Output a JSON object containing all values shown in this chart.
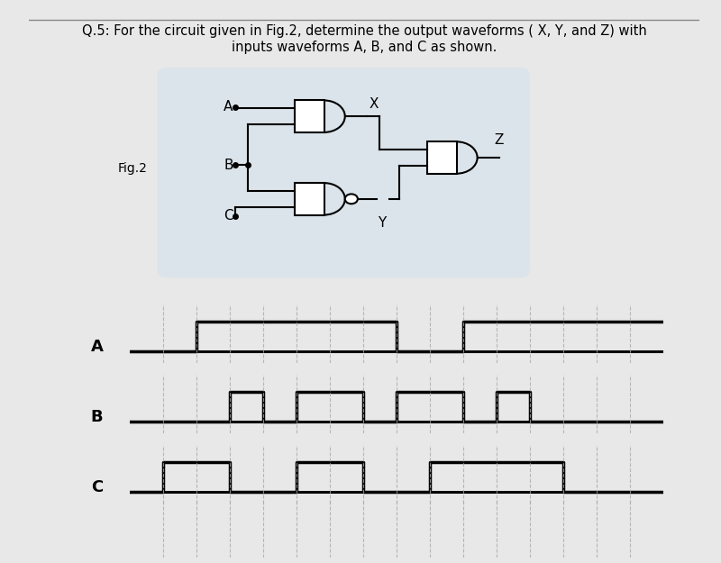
{
  "title_line1": "Q.5: For the circuit given in Fig.2, determine the output waveforms ( X, Y, and Z) with",
  "title_line2": "inputs waveforms A, B, and C as shown.",
  "fig_label": "Fig.2",
  "bg_color": "#e8e8e8",
  "content_bg": "#ffffff",
  "signal_labels": [
    "A",
    "B",
    "C"
  ],
  "time_steps": 16,
  "A_wave": [
    0,
    0,
    1,
    1,
    1,
    1,
    1,
    1,
    0,
    0,
    1,
    1,
    1,
    1,
    1,
    1
  ],
  "B_wave": [
    0,
    0,
    0,
    1,
    0,
    1,
    1,
    0,
    1,
    1,
    0,
    1,
    0,
    0,
    0,
    0
  ],
  "C_wave": [
    0,
    1,
    1,
    0,
    0,
    1,
    1,
    0,
    0,
    1,
    1,
    1,
    1,
    0,
    0,
    0
  ],
  "line_color": "#000000",
  "dashed_color": "#aaaaaa",
  "label_fontsize": 13,
  "title_fontsize": 10.5,
  "circuit_bg": "#cce0ee"
}
